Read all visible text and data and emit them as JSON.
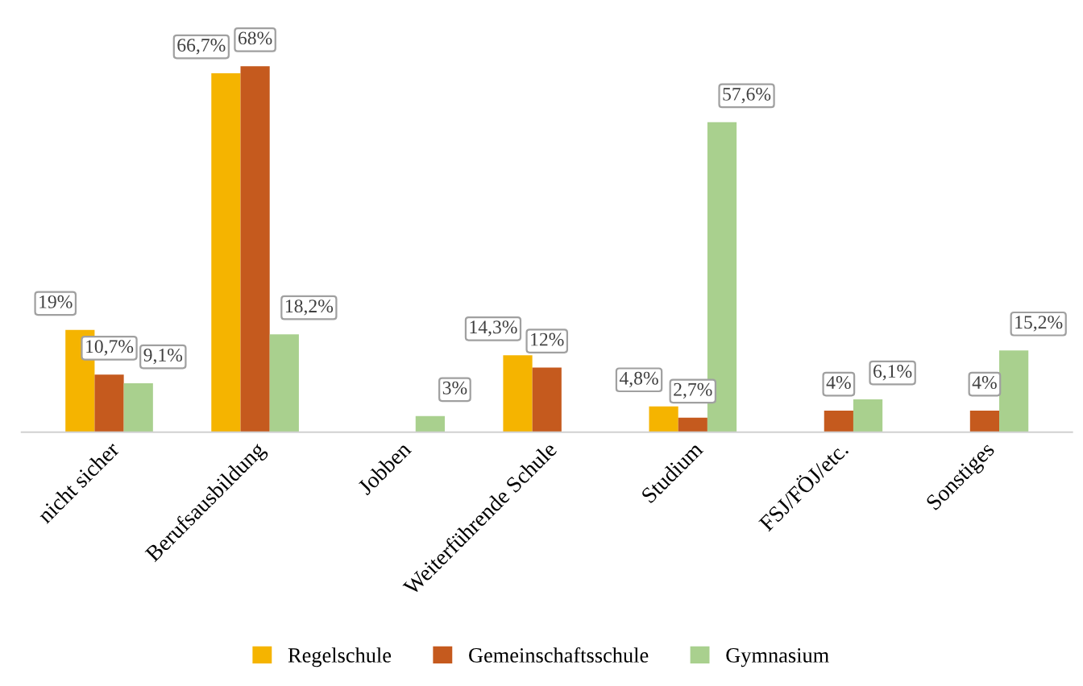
{
  "chart_data": {
    "type": "bar",
    "categories": [
      "nicht sicher",
      "Berufsausbildung",
      "Jobben",
      "Weiterführende Schule",
      "Studium",
      "FSJ/FÖJ/etc.",
      "Sonstiges"
    ],
    "series": [
      {
        "name": "Regelschule",
        "color": "#f5b400",
        "values": [
          19,
          66.7,
          null,
          14.3,
          4.8,
          null,
          null
        ],
        "value_labels": [
          "19%",
          "66,7%",
          null,
          "14,3%",
          "4,8%",
          null,
          null
        ]
      },
      {
        "name": "Gemeinschaftsschule",
        "color": "#c55a1e",
        "values": [
          10.7,
          68,
          null,
          12,
          2.7,
          4,
          4
        ],
        "value_labels": [
          "10,7%",
          "68%",
          null,
          "12%",
          "2,7%",
          "4%",
          "4%"
        ]
      },
      {
        "name": "Gymnasium",
        "color": "#a9d08e",
        "values": [
          9.1,
          18.2,
          3,
          null,
          57.6,
          6.1,
          15.2
        ],
        "value_labels": [
          "9,1%",
          "18,2%",
          "3%",
          null,
          "57,6%",
          "6,1%",
          "15,2%"
        ]
      }
    ],
    "legend": "bottom",
    "grid": false
  }
}
